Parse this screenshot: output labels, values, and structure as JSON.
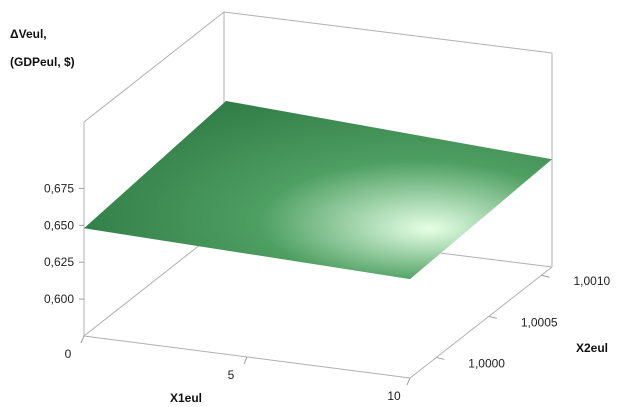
{
  "chart_data": {
    "type": "surface",
    "title": "",
    "zlabel_line1": "ΔVeul,",
    "zlabel_line2": "(GDPeul, $)",
    "xlabel": "X1eul",
    "ylabel": "X2eul",
    "x_ticks": [
      "0",
      "5",
      "10"
    ],
    "y_ticks": [
      "1,0000",
      "1,0005",
      "1,0010"
    ],
    "z_ticks": [
      "0,600",
      "0,625",
      "0,650",
      "0,675"
    ],
    "xlim": [
      0,
      10
    ],
    "ylim": [
      0.99975,
      1.0011
    ],
    "zlim": [
      0.575,
      0.72
    ],
    "grid": false,
    "legend": "none",
    "surface": {
      "x": [
        0,
        10
      ],
      "y": [
        0.99975,
        1.0011
      ],
      "z": [
        [
          0.648,
          0.642
        ],
        [
          0.659,
          0.648
        ]
      ],
      "color_dark": "#2f7a45",
      "color_mid": "#4e9f62",
      "color_light": "#e6ffe6"
    }
  }
}
